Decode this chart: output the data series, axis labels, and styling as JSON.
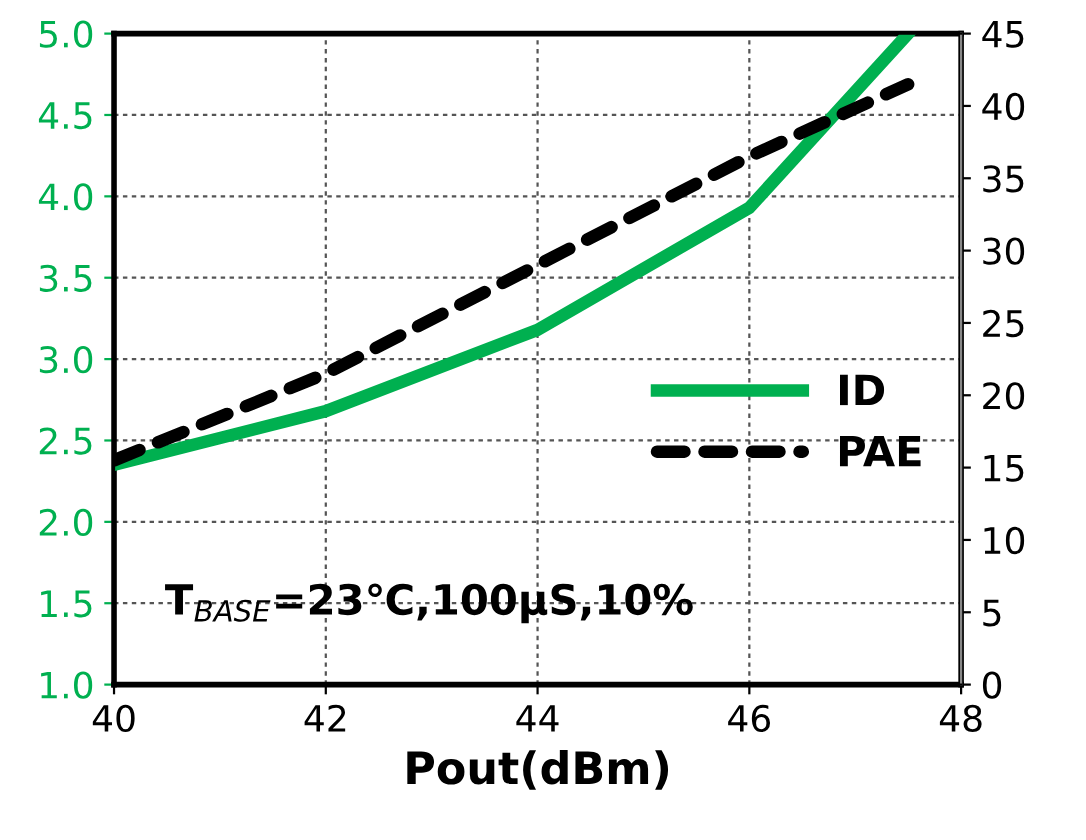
{
  "chart_data": {
    "type": "line",
    "xlabel": "Pout(dBm)",
    "x": [
      40,
      42,
      44,
      46,
      47.5
    ],
    "series": [
      {
        "name": "ID",
        "color": "#00b050",
        "values": [
          2.35,
          2.68,
          3.18,
          3.93,
          5.0
        ],
        "line_style": "solid"
      },
      {
        "name": "PAE",
        "color": "#000000",
        "values": [
          15.5,
          21.5,
          29,
          36.5,
          41.5
        ],
        "axis": "y2",
        "line_style": "dashed"
      }
    ],
    "xlim": [
      40,
      48
    ],
    "xticks": [
      40,
      42,
      44,
      46,
      48
    ],
    "ylim": [
      1.0,
      5.0
    ],
    "yticks": [
      {
        "value": 1.0,
        "label": "1.0"
      },
      {
        "value": 1.5,
        "label": "1.5"
      },
      {
        "value": 2.0,
        "label": "2.0"
      },
      {
        "value": 2.5,
        "label": "2.5"
      },
      {
        "value": 3.0,
        "label": "3.0"
      },
      {
        "value": 3.5,
        "label": "3.5"
      },
      {
        "value": 4.0,
        "label": "4.0"
      },
      {
        "value": 4.5,
        "label": "4.5"
      },
      {
        "value": 5.0,
        "label": "5.0"
      }
    ],
    "y2lim": [
      0,
      45
    ],
    "y2ticks": [
      0,
      5,
      10,
      15,
      20,
      25,
      30,
      35,
      40,
      45
    ],
    "grid": true,
    "legend": "right",
    "marker": "none",
    "annotations": [
      "T$_{BASE}$=23℃,100µS,10%"
    ]
  }
}
